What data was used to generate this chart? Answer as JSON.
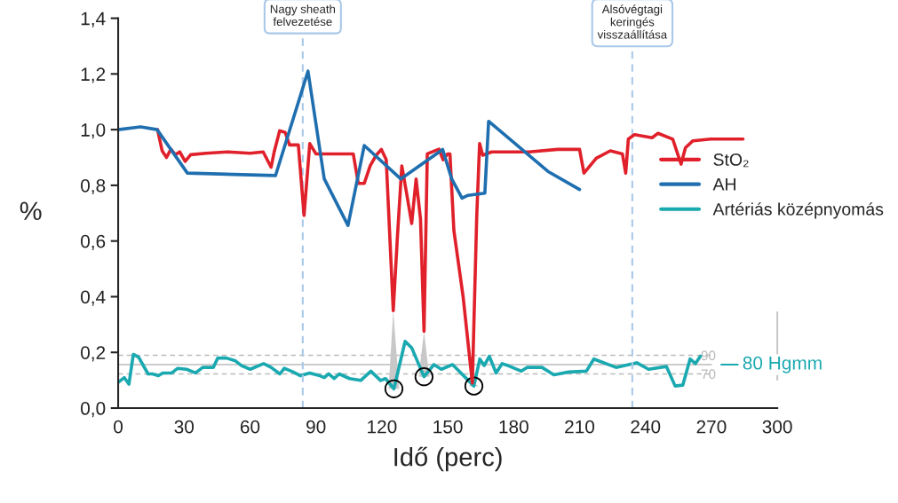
{
  "chart_data": {
    "type": "line",
    "xlabel": "Idő (perc)",
    "ylabel": "%",
    "xlim": [
      0,
      300
    ],
    "xticks": [
      0,
      30,
      60,
      90,
      120,
      150,
      180,
      210,
      240,
      270,
      300
    ],
    "ylim": [
      0,
      1.4
    ],
    "yticks": [
      {
        "value": 0,
        "label": "0,0"
      },
      {
        "value": 0.2,
        "label": "0,2"
      },
      {
        "value": 0.4,
        "label": "0,4"
      },
      {
        "value": 0.6,
        "label": "0,6"
      },
      {
        "value": 0.8,
        "label": "0,8"
      },
      {
        "value": 1.0,
        "label": "1,0"
      },
      {
        "value": 1.2,
        "label": "1,2"
      },
      {
        "value": 1.4,
        "label": "1,4"
      }
    ],
    "y2lim": [
      33.3,
      452
    ],
    "y2ticks": [
      70,
      90
    ],
    "legend": "right",
    "grid": false,
    "series": [
      {
        "name": "StO₂",
        "color": "#e0202a",
        "x": [
          17.9,
          20,
          22,
          24,
          26,
          28,
          30.5,
          33,
          40,
          50,
          60,
          66,
          69.6,
          71,
          73.5,
          76,
          78,
          82,
          84.6,
          87.2,
          90,
          100,
          107,
          109.3,
          112,
          114.7,
          117.4,
          119.8,
          122,
          125.2,
          127.1,
          129.1,
          131.2,
          133.6,
          135.6,
          137.6,
          139.2,
          140.7,
          146,
          147.9,
          150,
          151,
          152.8,
          157,
          161.2,
          163.2,
          164.5,
          165.9,
          170,
          187,
          200,
          210,
          212,
          217.6,
          224,
          229.5,
          231,
          232.2,
          235,
          243,
          245.7,
          252.4,
          256.2,
          258.2,
          261.6,
          269.7,
          284.4
        ],
        "values": [
          1.0,
          0.924,
          0.9,
          0.93,
          0.91,
          0.92,
          0.886,
          0.91,
          0.915,
          0.92,
          0.915,
          0.92,
          0.865,
          0.92,
          0.996,
          0.99,
          0.945,
          0.945,
          0.692,
          0.95,
          0.913,
          0.913,
          0.913,
          0.807,
          0.807,
          0.87,
          0.908,
          0.929,
          0.892,
          0.35,
          0.616,
          0.87,
          0.775,
          0.663,
          0.823,
          0.679,
          0.276,
          0.913,
          0.93,
          0.892,
          0.913,
          0.913,
          0.637,
          0.4,
          0.09,
          0.69,
          0.95,
          0.908,
          0.92,
          0.92,
          0.929,
          0.929,
          0.844,
          0.897,
          0.924,
          0.913,
          0.844,
          0.966,
          0.982,
          0.971,
          0.987,
          0.966,
          0.876,
          0.935,
          0.96,
          0.966,
          0.966
        ]
      },
      {
        "name": "AH",
        "color": "#1f6fb0",
        "x": [
          0,
          10.2,
          17.7,
          31.5,
          71.6,
          86.4,
          93.8,
          104.6,
          112,
          128.6,
          147.7,
          151.8,
          156.5,
          159.2,
          166.9,
          168.6,
          195.6,
          210
        ],
        "values": [
          1.0,
          1.01,
          1.0,
          0.844,
          0.835,
          1.21,
          0.823,
          0.656,
          0.943,
          0.823,
          0.929,
          0.823,
          0.754,
          0.764,
          0.772,
          1.03,
          0.85,
          0.785
        ]
      },
      {
        "name": "Artériás középnyomás",
        "color": "#1aa9b0",
        "axis": "y2",
        "x": [
          0.1,
          2.8,
          4.9,
          6.9,
          9.3,
          13.6,
          15.6,
          18.3,
          20.3,
          24.4,
          27.1,
          31.1,
          35.2,
          38.5,
          43.3,
          45.3,
          49.3,
          53.4,
          56.1,
          60.1,
          66.2,
          69.6,
          73.6,
          75.6,
          79.7,
          83,
          87.1,
          91.8,
          93.8,
          95.8,
          98.3,
          100.6,
          105.3,
          110.4,
          115,
          119.4,
          121.7,
          125.5,
          130.6,
          133.6,
          139.2,
          143.7,
          147.1,
          152.2,
          161.9,
          164.6,
          166.6,
          168.9,
          172,
          174.7,
          177.4,
          183.5,
          186.1,
          192.9,
          198.3,
          205,
          213.1,
          216.5,
          226.6,
          236,
          241.4,
          249.5,
          253.5,
          257,
          260.3,
          262.7,
          265
        ],
        "values": [
          61,
          66,
          59,
          91,
          88,
          70,
          70,
          68,
          71,
          71,
          76,
          75,
          71,
          77,
          77,
          87,
          87,
          84,
          79,
          75,
          81,
          77,
          70,
          76,
          72,
          68,
          71,
          68,
          66,
          70,
          65,
          70,
          65,
          63,
          73,
          63,
          65,
          54,
          105,
          98,
          67,
          80,
          75,
          80,
          57,
          86,
          79,
          89,
          71,
          81,
          79,
          73,
          77,
          77,
          69,
          72,
          73,
          86,
          77,
          82,
          75,
          78,
          57,
          58,
          86,
          81,
          89
        ]
      }
    ],
    "ref_lines": [
      {
        "axis": "x",
        "value": 84,
        "label": "Nagy sheath\nfelvezetése",
        "color": "#a9c8e8",
        "line_style": "dashed"
      },
      {
        "axis": "x",
        "value": 234,
        "label": "Alsóvégtagi\nkeringés\nvisszaállítása",
        "color": "#a9c8e8",
        "line_style": "dashed"
      },
      {
        "axis": "y2",
        "value": 90,
        "color": "#bbbbbb",
        "line_style": "dashed"
      },
      {
        "axis": "y2",
        "value": 80,
        "label": "80 Hgmm",
        "color": "#bbbbbb",
        "line_style": "solid"
      },
      {
        "axis": "y2",
        "value": 70,
        "color": "#bbbbbb",
        "line_style": "dashed"
      }
    ]
  }
}
